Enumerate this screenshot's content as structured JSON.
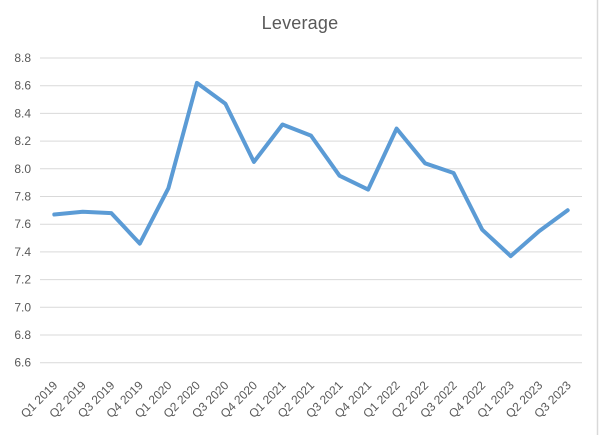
{
  "chart_data": {
    "type": "line",
    "title": "Leverage",
    "categories": [
      "Q1 2019",
      "Q2 2019",
      "Q3 2019",
      "Q4 2019",
      "Q1 2020",
      "Q2 2020",
      "Q3 2020",
      "Q4 2020",
      "Q1 2021",
      "Q2 2021",
      "Q3 2021",
      "Q4 2021",
      "Q1 2022",
      "Q2 2022",
      "Q3 2022",
      "Q4 2022",
      "Q1 2023",
      "Q2 2023",
      "Q3 2023"
    ],
    "values": [
      7.67,
      7.69,
      7.68,
      7.46,
      7.86,
      8.62,
      8.47,
      8.05,
      8.32,
      8.24,
      7.95,
      7.85,
      8.29,
      8.04,
      7.97,
      7.56,
      7.37,
      7.55,
      7.7
    ],
    "xlabel": "",
    "ylabel": "",
    "ylim": [
      6.6,
      8.8
    ],
    "ytick_step": 0.2,
    "ytick_decimals": 1,
    "grid": true,
    "legend": false,
    "xtick_rotation_deg": 45,
    "colors": {
      "line": "#5B9BD5",
      "gridline": "#D9D9D9",
      "text": "#595959",
      "background": "#FFFFFF",
      "chart_border": "#D9D9D9"
    }
  }
}
